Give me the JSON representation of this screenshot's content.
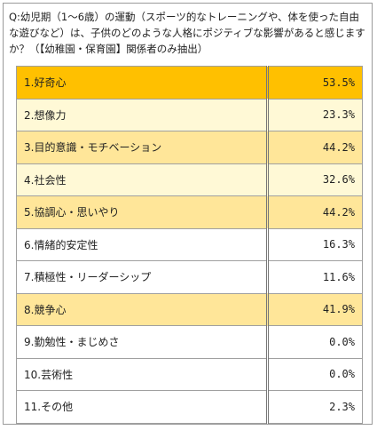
{
  "chart_data": {
    "type": "table",
    "title": "Q:幼児期（1～6歳）の運動（スポーツ的なトレーニングや、体を使った自由な遊びなど）は、子供のどのような人格にポジティブな影響があると感じますか？（【幼稚園・保育園】関係者のみ抽出）",
    "categories": [
      "1.好奇心",
      "2.想像力",
      "3.目的意識・モチベーション",
      "4.社会性",
      "5.協調心・思いやり",
      "6.情緒的安定性",
      "7.積極性・リーダーシップ",
      "8.競争心",
      "9.勤勉性・まじめさ",
      "10.芸術性",
      "11.その他"
    ],
    "values": [
      53.5,
      23.3,
      44.2,
      32.6,
      44.2,
      16.3,
      11.6,
      41.9,
      0.0,
      0.0,
      2.3
    ],
    "value_labels": [
      "53.5%",
      "23.3%",
      "44.2%",
      "32.6%",
      "44.2%",
      "16.3%",
      "11.6%",
      "41.9%",
      "0.0%",
      "0.0%",
      "2.3%"
    ],
    "row_shading": [
      "top",
      "lo",
      "hi",
      "lo",
      "hi",
      "none",
      "none",
      "hi",
      "none",
      "none",
      "none"
    ],
    "colors": {
      "top": "#ffc000",
      "hi": "#ffe699",
      "lo": "#fff9d6",
      "none": "#ffffff"
    }
  }
}
